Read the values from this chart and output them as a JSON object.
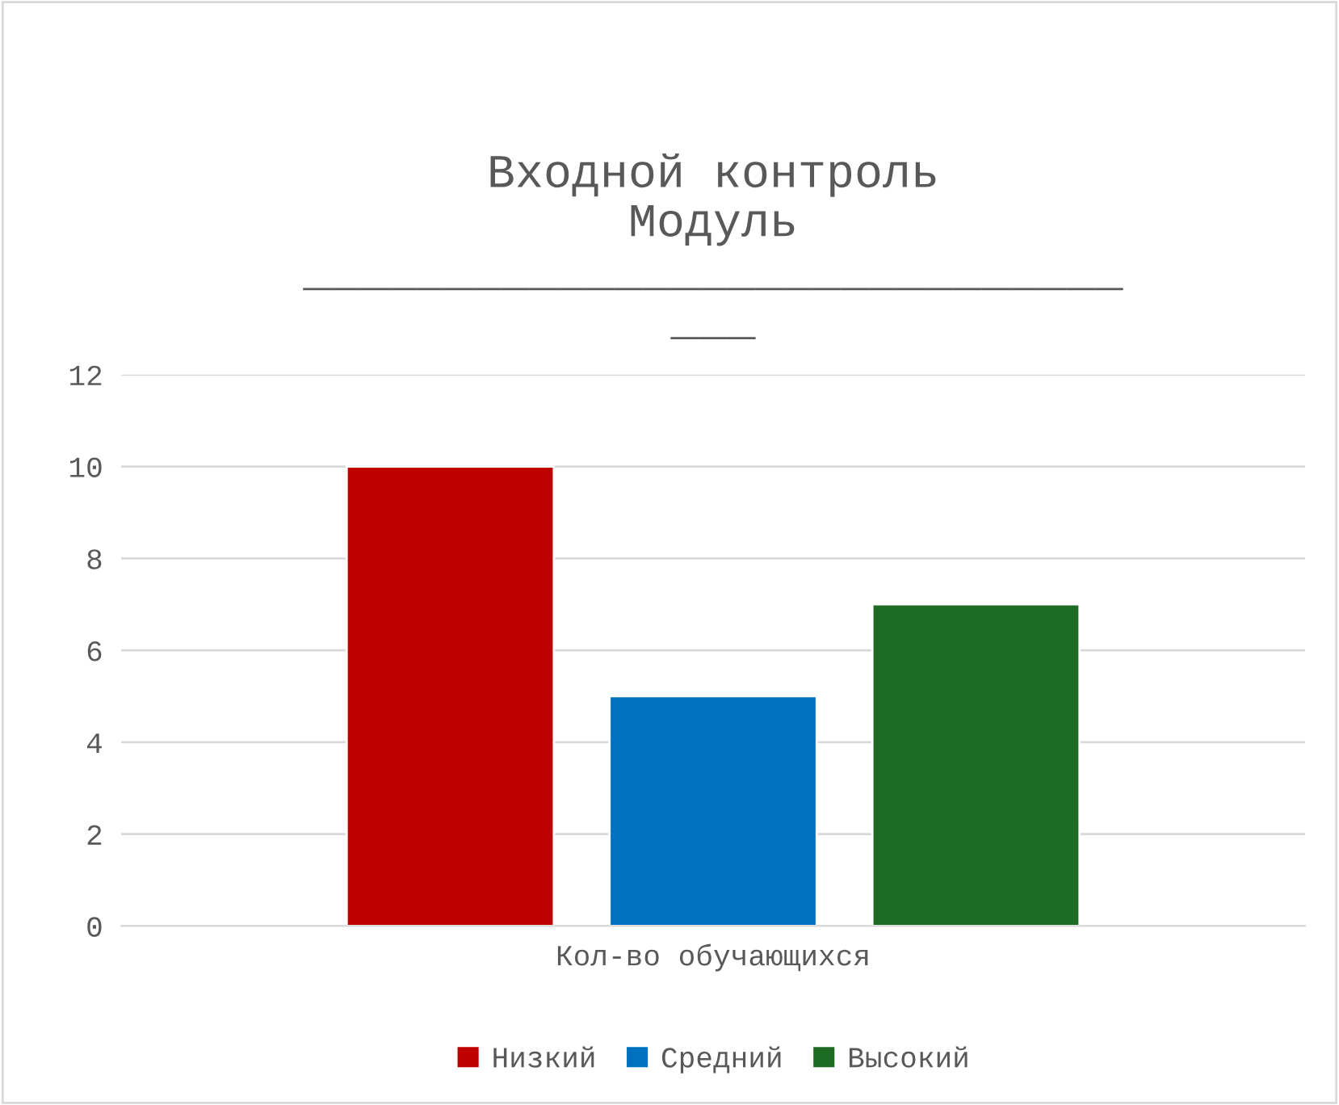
{
  "chart_data": {
    "type": "bar",
    "title": "Входной контроль\nМодуль\n_____________________________\n___",
    "categories": [
      "Кол-во обучающихся"
    ],
    "series": [
      {
        "name": "Низкий",
        "color": "#c00000",
        "values": [
          10
        ]
      },
      {
        "name": "Средний",
        "color": "#0070c0",
        "values": [
          5
        ]
      },
      {
        "name": "Высокий",
        "color": "#1e6b24",
        "values": [
          7
        ]
      }
    ],
    "ylim": [
      0,
      12
    ],
    "yticks": [
      0,
      2,
      4,
      6,
      8,
      10,
      12
    ],
    "grid": "y",
    "legend": "bottom"
  }
}
